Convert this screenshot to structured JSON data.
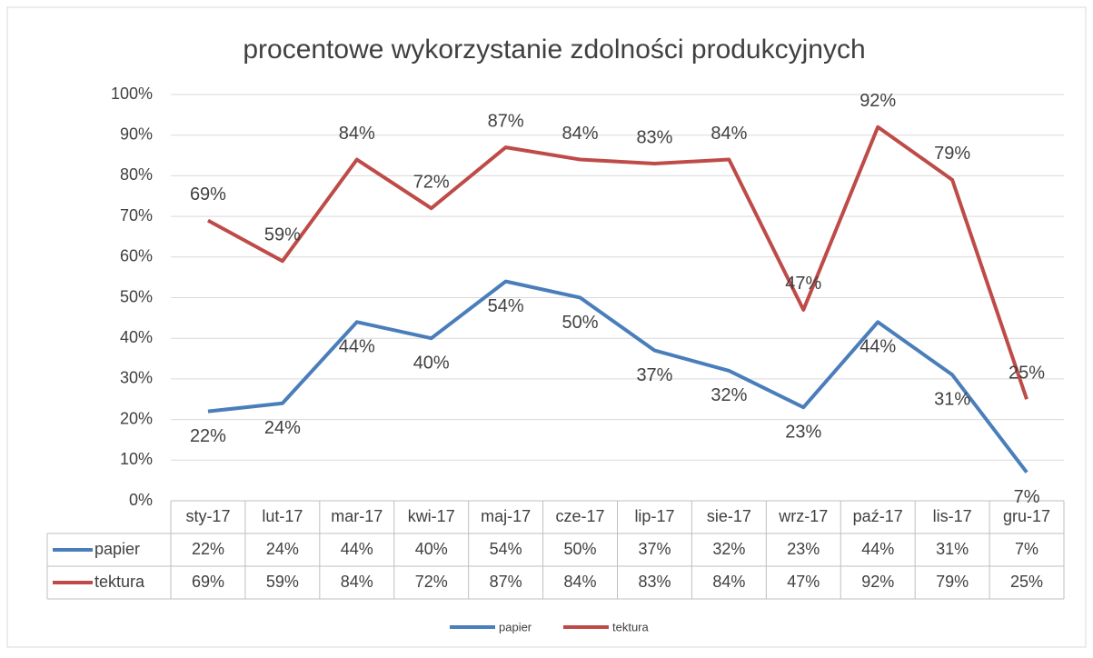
{
  "chart_data": {
    "type": "line",
    "title": "procentowe wykorzystanie zdolności produkcyjnych",
    "categories": [
      "sty-17",
      "lut-17",
      "mar-17",
      "kwi-17",
      "maj-17",
      "cze-17",
      "lip-17",
      "sie-17",
      "wrz-17",
      "paź-17",
      "lis-17",
      "gru-17"
    ],
    "series": [
      {
        "name": "papier",
        "color": "#4a7ebb",
        "values": [
          22,
          24,
          44,
          40,
          54,
          50,
          37,
          32,
          23,
          44,
          31,
          7
        ],
        "value_labels": [
          "22%",
          "24%",
          "44%",
          "40%",
          "54%",
          "50%",
          "37%",
          "32%",
          "23%",
          "44%",
          "31%",
          "7%"
        ]
      },
      {
        "name": "tektura",
        "color": "#be4b48",
        "values": [
          69,
          59,
          84,
          72,
          87,
          84,
          83,
          84,
          47,
          92,
          79,
          25
        ],
        "value_labels": [
          "69%",
          "59%",
          "84%",
          "72%",
          "87%",
          "84%",
          "83%",
          "84%",
          "47%",
          "92%",
          "79%",
          "25%"
        ]
      }
    ],
    "ylim": [
      0,
      100
    ],
    "yticks": [
      {
        "value": 0,
        "label": "0%"
      },
      {
        "value": 10,
        "label": "10%"
      },
      {
        "value": 20,
        "label": "20%"
      },
      {
        "value": 30,
        "label": "30%"
      },
      {
        "value": 40,
        "label": "40%"
      },
      {
        "value": 50,
        "label": "50%"
      },
      {
        "value": 60,
        "label": "60%"
      },
      {
        "value": 70,
        "label": "70%"
      },
      {
        "value": 80,
        "label": "80%"
      },
      {
        "value": 90,
        "label": "90%"
      },
      {
        "value": 100,
        "label": "100%"
      }
    ],
    "grid": true,
    "legend": "bottom"
  }
}
